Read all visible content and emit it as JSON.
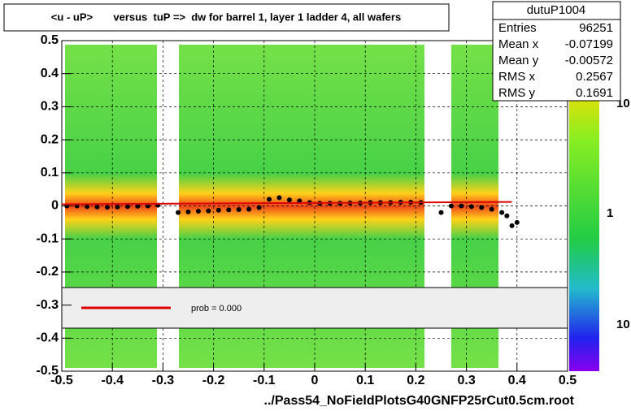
{
  "chart_data": {
    "type": "scatter",
    "title": "<u - uP>       versus  tuP =>  dw for barrel 1, layer 1 ladder 4, all wafers",
    "x_label": "../Pass54_NoFieldPlotsG40GNFP25rCut0.5cm.root",
    "xlim": [
      -0.5,
      0.5
    ],
    "ylim": [
      -0.5,
      0.5
    ],
    "xticks": [
      -0.5,
      -0.4,
      -0.3,
      -0.2,
      -0.1,
      0,
      0.1,
      0.2,
      0.3,
      0.4,
      0.5
    ],
    "yticks": [
      -0.5,
      -0.4,
      -0.3,
      -0.2,
      -0.1,
      0,
      0.1,
      0.2,
      0.3,
      0.4,
      0.5
    ],
    "grid": true,
    "series": [
      {
        "name": "profile",
        "color": "#000000",
        "x": [
          -0.49,
          -0.47,
          -0.45,
          -0.43,
          -0.41,
          -0.39,
          -0.37,
          -0.35,
          -0.33,
          -0.31,
          -0.27,
          -0.25,
          -0.23,
          -0.21,
          -0.19,
          -0.17,
          -0.15,
          -0.13,
          -0.11,
          -0.09,
          -0.07,
          -0.05,
          -0.03,
          -0.01,
          0.01,
          0.03,
          0.05,
          0.07,
          0.09,
          0.11,
          0.13,
          0.15,
          0.17,
          0.19,
          0.21,
          0.25,
          0.27,
          0.29,
          0.31,
          0.33,
          0.35,
          0.37,
          0.38,
          0.39,
          0.4
        ],
        "values": [
          0.0,
          0.0,
          -0.002,
          -0.003,
          -0.004,
          -0.003,
          -0.002,
          -0.001,
          0.0,
          0.002,
          -0.02,
          -0.018,
          -0.016,
          -0.015,
          -0.013,
          -0.012,
          -0.011,
          -0.01,
          -0.005,
          0.02,
          0.025,
          0.018,
          0.015,
          0.01,
          0.008,
          0.008,
          0.008,
          0.009,
          0.009,
          0.01,
          0.01,
          0.01,
          0.011,
          0.011,
          0.01,
          -0.02,
          0.0,
          0.0,
          -0.002,
          -0.005,
          -0.01,
          -0.02,
          -0.03,
          -0.06,
          -0.05
        ]
      },
      {
        "name": "fit",
        "color": "#dd0000",
        "x": [
          -0.5,
          0.39
        ],
        "values": [
          0.005,
          0.012
        ]
      }
    ],
    "legend": {
      "label": "prob = 0.000"
    },
    "colorbar_labels": [
      "10",
      "1",
      "10"
    ],
    "stats": {
      "name": "dutuP1004",
      "rows": [
        [
          "Entries",
          "96251"
        ],
        [
          "Mean x",
          "-0.07199"
        ],
        [
          "Mean y",
          "-0.00572"
        ],
        [
          "RMS x",
          "0.2567"
        ],
        [
          "RMS y",
          "0.1691"
        ]
      ]
    }
  }
}
